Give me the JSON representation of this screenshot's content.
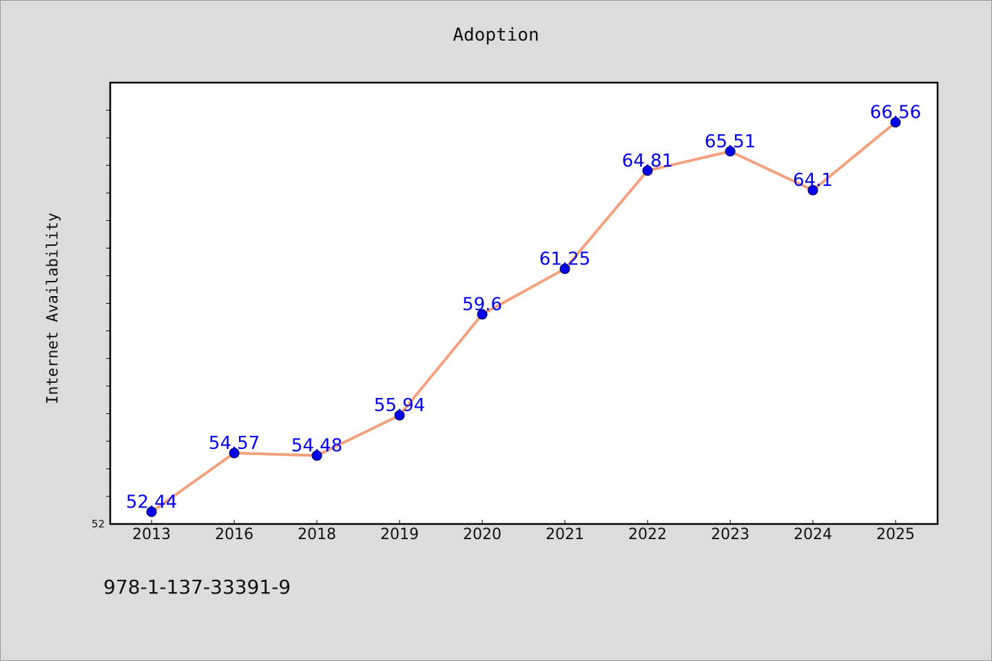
{
  "chart_data": {
    "type": "line",
    "title": "Adoption",
    "xlabel": "",
    "ylabel": "Internet Availability",
    "categories": [
      "2013",
      "2016",
      "2018",
      "2019",
      "2020",
      "2021",
      "2022",
      "2023",
      "2024",
      "2025"
    ],
    "series": [
      {
        "values": [
          52.44,
          54.57,
          54.48,
          55.94,
          59.6,
          61.25,
          64.81,
          65.51,
          64.1,
          66.56
        ],
        "line_color": "#f4a07c",
        "marker_color": "#0000ee"
      }
    ],
    "y_tick_labels": [
      "52"
    ],
    "ylim": [
      52,
      68
    ],
    "grid": false,
    "legend": "none"
  },
  "footer": {
    "code": "978-1-137-33391-9"
  }
}
